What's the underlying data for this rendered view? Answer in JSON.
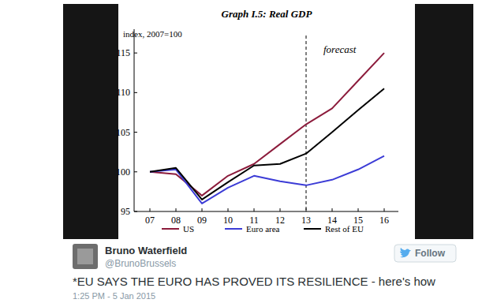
{
  "chart_data": {
    "type": "line",
    "title": "Graph I.5: Real GDP",
    "y_label": "index, 2007=100",
    "categories": [
      "07",
      "08",
      "09",
      "10",
      "11",
      "12",
      "13",
      "14",
      "15",
      "16"
    ],
    "series": [
      {
        "name": "US",
        "color": "#8c1c3c",
        "values": [
          100,
          99.7,
          97,
          99.5,
          101,
          103.5,
          106,
          108,
          111.5,
          115
        ]
      },
      {
        "name": "Euro area",
        "color": "#3c3cd6",
        "values": [
          100,
          100.3,
          96,
          98,
          99.5,
          98.8,
          98.3,
          99,
          100.3,
          102
        ]
      },
      {
        "name": "Rest of EU",
        "color": "#000000",
        "values": [
          100,
          100.5,
          96.5,
          98.7,
          100.8,
          101,
          102.3,
          105,
          107.8,
          110.5
        ]
      }
    ],
    "ylim": [
      95,
      118
    ],
    "yticks": [
      95,
      100,
      105,
      110,
      115
    ],
    "grid": false,
    "legend": "bottom",
    "annotations": [
      {
        "text": "forecast",
        "x": "13"
      }
    ]
  },
  "tweet": {
    "name": "Bruno Waterfield",
    "handle": "@BrunoBrussels",
    "button": "Follow",
    "text": "*EU SAYS THE EURO HAS PROVED ITS RESILIENCE - here's how",
    "timestamp": "1:25 PM - 5 Jan 2015"
  }
}
